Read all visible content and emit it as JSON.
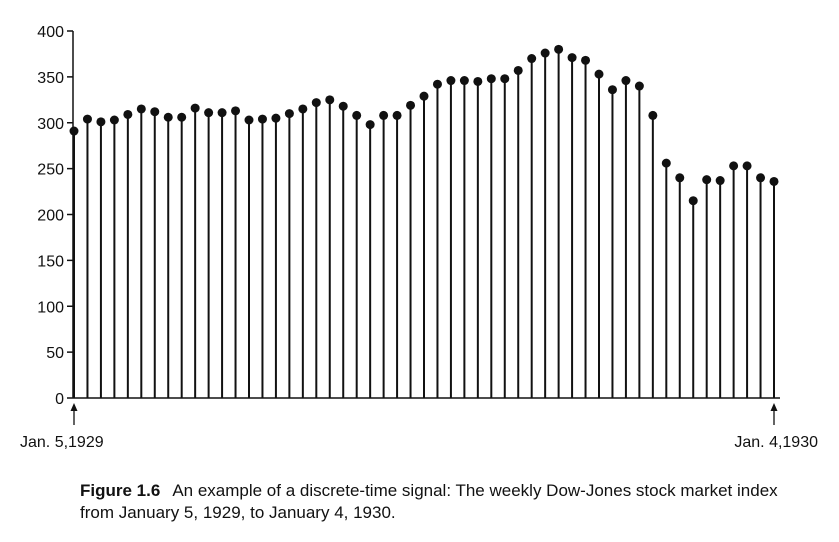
{
  "chart_data": {
    "type": "stem",
    "title": "",
    "xlabel": "",
    "ylabel": "",
    "ylim": [
      0,
      400
    ],
    "yticks": [
      0,
      50,
      100,
      150,
      200,
      250,
      300,
      350,
      400
    ],
    "x_start_label": "Jan. 5,1929",
    "x_end_label": "Jan. 4,1930",
    "values": [
      291,
      304,
      301,
      303,
      309,
      315,
      312,
      306,
      306,
      316,
      311,
      311,
      313,
      303,
      304,
      305,
      310,
      315,
      322,
      325,
      318,
      308,
      298,
      308,
      308,
      319,
      329,
      342,
      346,
      346,
      345,
      348,
      348,
      357,
      370,
      376,
      380,
      371,
      368,
      353,
      336,
      346,
      340,
      308,
      256,
      240,
      215,
      238,
      237,
      253,
      253,
      240,
      236
    ],
    "grid": false,
    "legend": "none"
  },
  "caption": {
    "label": "Figure 1.6",
    "text": "An example of a discrete-time signal: The weekly Dow-Jones stock market index from January 5, 1929, to January 4, 1930."
  }
}
